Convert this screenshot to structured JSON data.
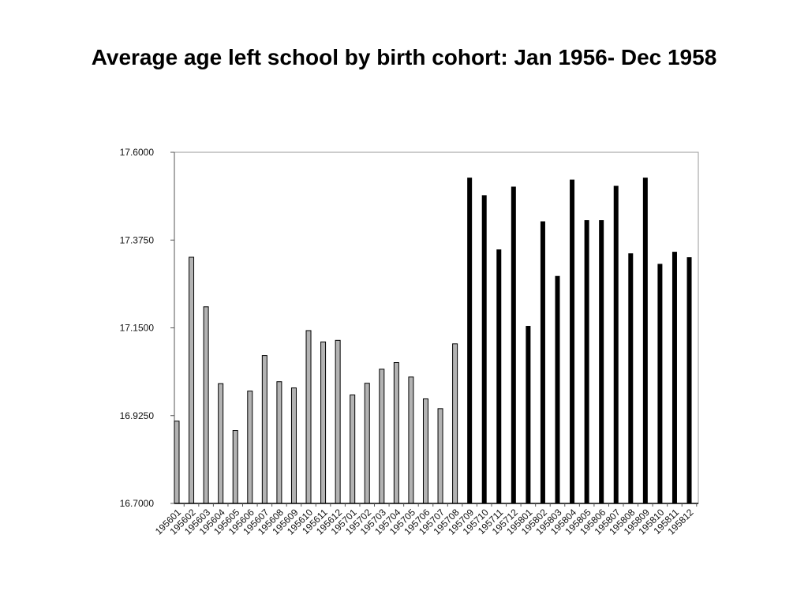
{
  "chart_data": {
    "type": "bar",
    "title": "Average age left school by birth cohort: Jan 1956- Dec 1958",
    "xlabel": "",
    "ylabel": "",
    "ylim": [
      16.7,
      17.6
    ],
    "yticks": [
      "16.7000",
      "16.9250",
      "17.1500",
      "17.3750",
      "17.6000"
    ],
    "ytick_values": [
      16.7,
      16.925,
      17.15,
      17.375,
      17.6
    ],
    "grid": false,
    "categories": [
      "195601",
      "195602",
      "195603",
      "195604",
      "195605",
      "195606",
      "195607",
      "195608",
      "195609",
      "195610",
      "195611",
      "195612",
      "195701",
      "195702",
      "195703",
      "195704",
      "195705",
      "195706",
      "195707",
      "195708",
      "195709",
      "195710",
      "195711",
      "195712",
      "195801",
      "195802",
      "195803",
      "195804",
      "195805",
      "195806",
      "195807",
      "195808",
      "195809",
      "195810",
      "195811",
      "195812"
    ],
    "values": [
      16.911,
      17.331,
      17.204,
      17.007,
      16.887,
      16.988,
      17.079,
      17.012,
      16.996,
      17.143,
      17.114,
      17.118,
      16.978,
      17.008,
      17.044,
      17.061,
      17.024,
      16.968,
      16.943,
      17.109,
      17.535,
      17.49,
      17.351,
      17.512,
      17.155,
      17.423,
      17.283,
      17.53,
      17.426,
      17.426,
      17.514,
      17.341,
      17.535,
      17.314,
      17.345,
      17.331
    ],
    "colors": {
      "1956-1957": "#b3b3b3",
      "1957-1958": "#000000"
    },
    "split_index": 20
  }
}
